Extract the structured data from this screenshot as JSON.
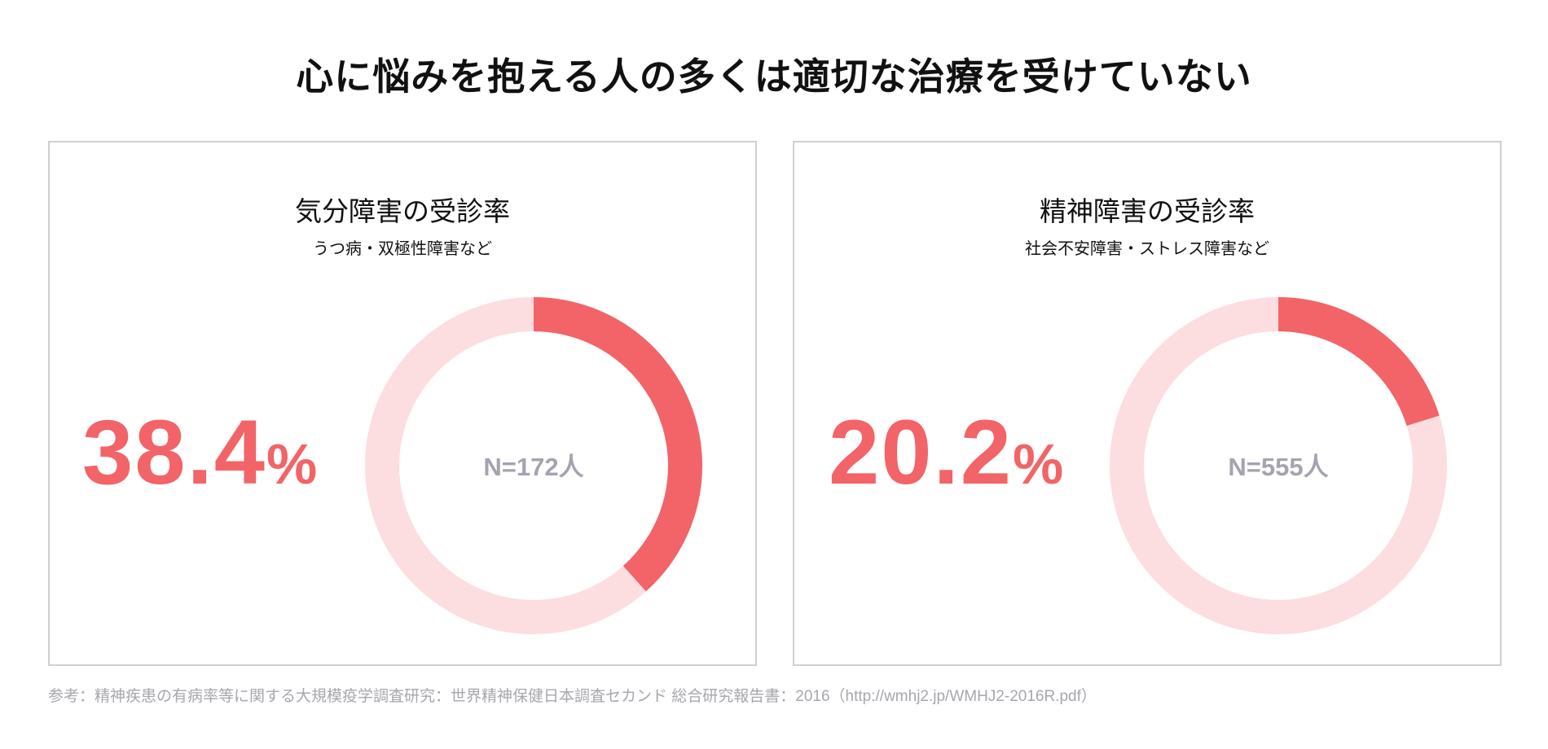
{
  "title": "心に悩みを抱える人の多くは適切な治療を受けていない",
  "colors": {
    "accent": "#f26467",
    "track": "#fcdde0",
    "n_text": "#a5a3b0",
    "border": "#cfcfcf"
  },
  "chart_data": [
    {
      "type": "pie",
      "variant": "donut",
      "title": "気分障害の受診率",
      "subtitle": "うつ病・双極性障害など",
      "value_percent": 38.4,
      "value_label": "38.4",
      "unit": "%",
      "center_label": "N=172人"
    },
    {
      "type": "pie",
      "variant": "donut",
      "title": "精神障害の受診率",
      "subtitle": "社会不安障害・ストレス障害など",
      "value_percent": 20.2,
      "value_label": "20.2",
      "unit": "%",
      "center_label": "N=555人"
    }
  ],
  "footnote": "参考：精神疾患の有病率等に関する大規模疫学調査研究：世界精神保健日本調査セカンド 総合研究報告書：2016（http://wmhj2.jp/WMHJ2-2016R.pdf）"
}
